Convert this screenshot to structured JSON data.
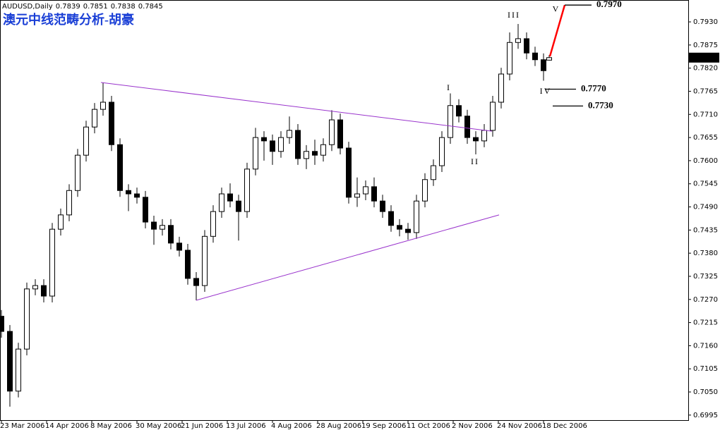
{
  "chart_data": {
    "type": "candlestick",
    "title": "澳元中线范畴分析-胡豪",
    "symbol": "AUDUSD,Daily",
    "x": [
      0,
      3,
      6,
      9,
      12,
      15,
      18,
      21,
      24,
      27,
      30,
      33,
      36,
      39,
      42,
      45,
      48,
      51,
      54,
      57,
      60,
      63,
      66,
      69,
      72,
      75,
      78,
      81,
      84,
      87,
      90,
      93,
      96,
      99,
      102,
      105,
      108,
      111,
      114,
      117,
      120,
      123,
      126,
      129,
      132,
      135,
      138,
      141,
      144,
      147,
      150,
      153,
      156,
      159,
      162,
      165,
      168,
      171,
      174,
      177,
      180,
      183,
      186,
      189,
      192,
      194
    ],
    "open": [
      0.723,
      0.7194,
      0.7052,
      0.7152,
      0.7295,
      0.7303,
      0.7278,
      0.7437,
      0.7471,
      0.7529,
      0.7613,
      0.768,
      0.7722,
      0.7739,
      0.7638,
      0.7529,
      0.7521,
      0.7513,
      0.7454,
      0.7437,
      0.7446,
      0.7404,
      0.7387,
      0.732,
      0.7303,
      0.742,
      0.7479,
      0.7521,
      0.7504,
      0.7479,
      0.758,
      0.7655,
      0.7647,
      0.7622,
      0.7655,
      0.7672,
      0.7605,
      0.7622,
      0.7613,
      0.7638,
      0.7697,
      0.763,
      0.7513,
      0.7521,
      0.7538,
      0.7504,
      0.7479,
      0.7446,
      0.7437,
      0.7429,
      0.7504,
      0.7555,
      0.7588,
      0.7655,
      0.7731,
      0.7706,
      0.7655,
      0.7647,
      0.7672,
      0.7739,
      0.7806,
      0.7881,
      0.789,
      0.7856,
      0.784,
      0.7839
    ],
    "high": [
      0.7245,
      0.7209,
      0.7167,
      0.731,
      0.7318,
      0.7318,
      0.7452,
      0.7486,
      0.7544,
      0.7628,
      0.7695,
      0.7737,
      0.7786,
      0.7754,
      0.7653,
      0.7544,
      0.7536,
      0.7528,
      0.7469,
      0.7461,
      0.7461,
      0.7419,
      0.7402,
      0.7335,
      0.7435,
      0.7494,
      0.7536,
      0.7546,
      0.7519,
      0.7595,
      0.7678,
      0.767,
      0.7662,
      0.767,
      0.7705,
      0.7687,
      0.7637,
      0.765,
      0.7653,
      0.772,
      0.7712,
      0.7645,
      0.756,
      0.7553,
      0.756,
      0.7519,
      0.7494,
      0.7461,
      0.7452,
      0.7519,
      0.757,
      0.7603,
      0.767,
      0.776,
      0.7746,
      0.7721,
      0.767,
      0.7687,
      0.7754,
      0.7821,
      0.7905,
      0.7925,
      0.7905,
      0.7871,
      0.7855,
      0.7851
    ],
    "low": [
      0.7179,
      0.7015,
      0.7037,
      0.7137,
      0.728,
      0.7263,
      0.7263,
      0.7422,
      0.7456,
      0.7514,
      0.7598,
      0.7665,
      0.7707,
      0.7623,
      0.7514,
      0.748,
      0.7498,
      0.7439,
      0.74,
      0.7422,
      0.7389,
      0.7372,
      0.7305,
      0.7268,
      0.7288,
      0.7405,
      0.7464,
      0.7489,
      0.741,
      0.7464,
      0.7565,
      0.76,
      0.759,
      0.7607,
      0.764,
      0.759,
      0.758,
      0.759,
      0.7598,
      0.7623,
      0.7615,
      0.7498,
      0.749,
      0.7506,
      0.7489,
      0.7464,
      0.7431,
      0.742,
      0.7412,
      0.7414,
      0.7489,
      0.754,
      0.7573,
      0.764,
      0.7691,
      0.764,
      0.7615,
      0.7632,
      0.7657,
      0.7724,
      0.7791,
      0.7866,
      0.7841,
      0.7825,
      0.779,
      0.7838
    ],
    "close": [
      0.7194,
      0.7052,
      0.7152,
      0.7295,
      0.7303,
      0.7278,
      0.7437,
      0.7471,
      0.7529,
      0.7613,
      0.768,
      0.7722,
      0.7739,
      0.7638,
      0.7529,
      0.7521,
      0.7513,
      0.7454,
      0.7437,
      0.7446,
      0.7404,
      0.7387,
      0.732,
      0.7303,
      0.742,
      0.7479,
      0.7521,
      0.7504,
      0.7479,
      0.758,
      0.7655,
      0.7647,
      0.7622,
      0.7655,
      0.7672,
      0.7605,
      0.7622,
      0.7613,
      0.7638,
      0.7697,
      0.763,
      0.7513,
      0.7521,
      0.7538,
      0.7504,
      0.7479,
      0.7446,
      0.7437,
      0.7429,
      0.7504,
      0.7555,
      0.7588,
      0.7655,
      0.7731,
      0.7706,
      0.7655,
      0.7647,
      0.7672,
      0.7739,
      0.7806,
      0.7881,
      0.789,
      0.7856,
      0.784,
      0.7814,
      0.7845
    ],
    "up_color": "#ffffff",
    "down_color": "#000000",
    "line_color": "#000000",
    "xlim": [
      -0.5,
      243.25
    ],
    "xticks": [
      {
        "value": 0,
        "label": "23 Mar 2006"
      },
      {
        "value": 16,
        "label": "14 Apr 2006"
      },
      {
        "value": 32,
        "label": "8 May 2006"
      },
      {
        "value": 48,
        "label": "30 May 2006"
      },
      {
        "value": 64,
        "label": "21 Jun 2006"
      },
      {
        "value": 80,
        "label": "13 Jul 2006"
      },
      {
        "value": 96,
        "label": "4 Aug 2006"
      },
      {
        "value": 112,
        "label": "28 Aug 2006"
      },
      {
        "value": 128,
        "label": "19 Sep 2006"
      },
      {
        "value": 144,
        "label": "11 Oct 2006"
      },
      {
        "value": 160,
        "label": "2 Nov 2006"
      },
      {
        "value": 176,
        "label": "24 Nov 2006"
      },
      {
        "value": 192,
        "label": "18 Dec 2006"
      }
    ],
    "ylim": [
      0.6983,
      0.7977
    ],
    "yticks": [
      0.6995,
      {
        "value": 0.705,
        "label": "0.7050"
      },
      0.7105,
      {
        "value": 0.716,
        "label": "0.7160"
      },
      0.7215,
      {
        "value": 0.727,
        "label": "0.7270"
      },
      0.7325,
      {
        "value": 0.738,
        "label": "0.7380"
      },
      0.7435,
      {
        "value": 0.749,
        "label": "0.7490"
      },
      0.7545,
      {
        "value": 0.76,
        "label": "0.7600"
      },
      0.7655,
      {
        "value": 0.771,
        "label": "0.7710"
      },
      0.7765,
      {
        "value": 0.782,
        "label": "0.7820"
      },
      0.7875,
      {
        "value": 0.793,
        "label": "0.7930"
      }
    ],
    "grid": false,
    "trendlines": [
      {
        "x": [
          35.25,
          173.75
        ],
        "y": [
          0.7786,
          0.767
        ],
        "color": "#9933cc"
      },
      {
        "x": [
          69,
          176.25
        ],
        "y": [
          0.7268,
          0.7471
        ],
        "color": "#9933cc"
      },
      {
        "x": [
          194.25,
          199.5
        ],
        "y": [
          0.7848,
          0.797
        ],
        "color": "#ff0000"
      }
    ],
    "levels": [
      {
        "value": 0.797,
        "label": "0.7970",
        "x": [
          199.5,
          209
        ]
      },
      {
        "value": 0.777,
        "label": "0.7770",
        "x": [
          192.5,
          203.5
        ]
      },
      {
        "value": 0.773,
        "label": "0.7730",
        "x": [
          195.25,
          206
        ]
      }
    ],
    "annotations": [
      {
        "text": "I",
        "x": 158.5,
        "y": 0.7772
      },
      {
        "text": "II",
        "x": 167.75,
        "y": 0.7596
      },
      {
        "text": "III",
        "x": 181.5,
        "y": 0.7945
      },
      {
        "text": "IV",
        "x": 192.75,
        "y": 0.7764
      },
      {
        "text": "V",
        "x": 196.5,
        "y": 0.7959
      }
    ],
    "annotation_color": "#dd0000"
  }
}
